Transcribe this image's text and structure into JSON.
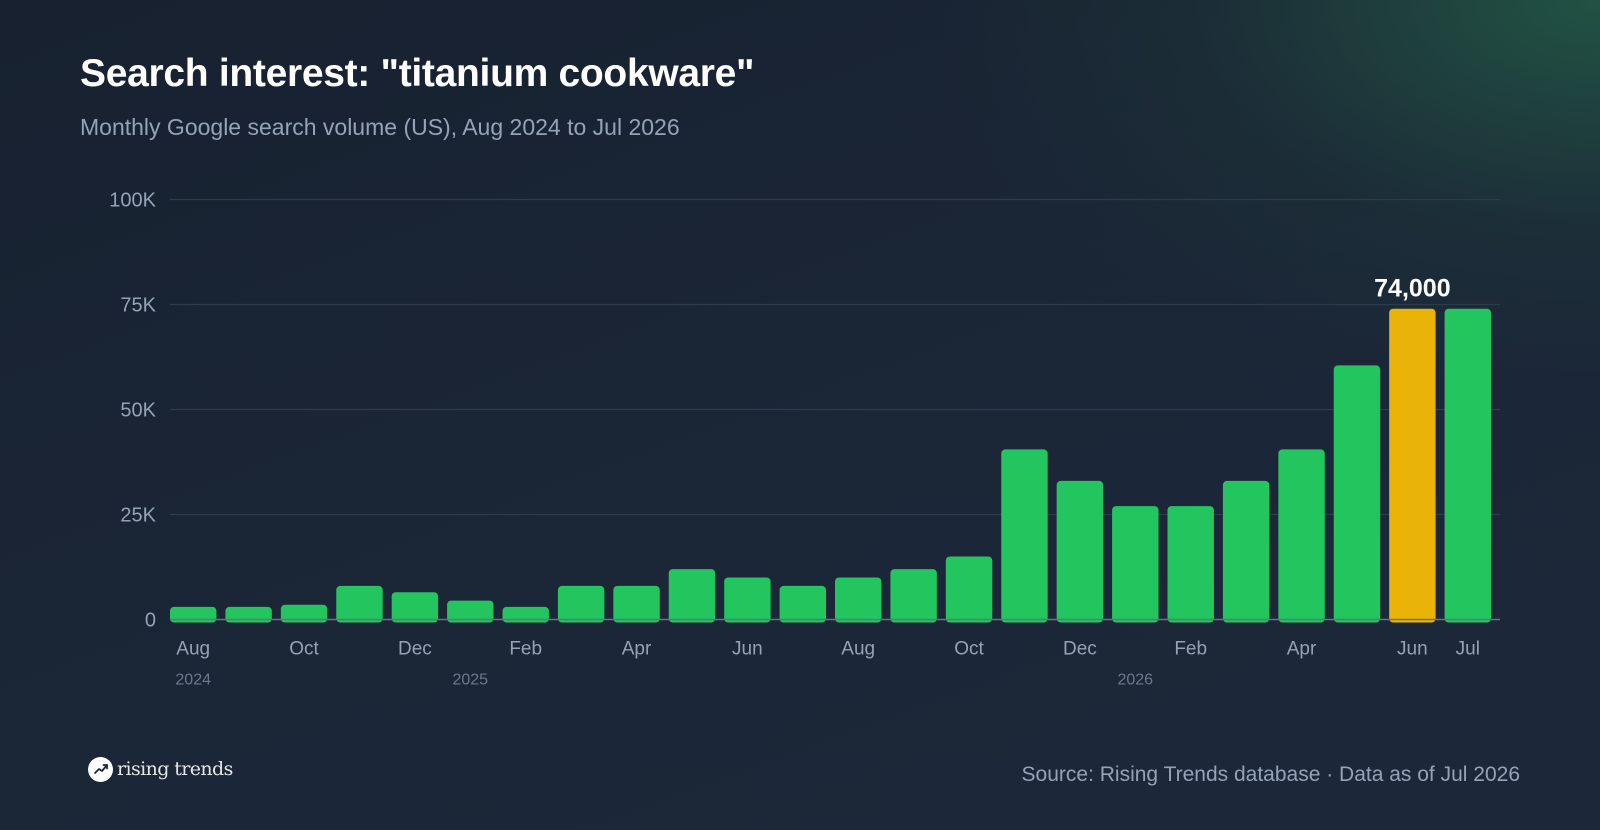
{
  "header": {
    "title": "Search interest: \"titanium cookware\"",
    "subtitle": "Monthly Google search volume (US), Aug 2024 to Jul 2026"
  },
  "footer": {
    "brand": "rising trends",
    "brand_icon": "trend-up-icon",
    "source": "Source: Rising Trends database · Data as of Jul 2026"
  },
  "colors": {
    "bar": "#22c55e",
    "highlight": "#eab308",
    "grid": "#2e3b4b",
    "baseline": "#6b7280",
    "tick_text": "#94a3b8",
    "year_text": "#6b7a8c",
    "annotation_text": "#ffffff"
  },
  "chart_data": {
    "type": "bar",
    "title": "Search interest: \"titanium cookware\"",
    "subtitle": "Monthly Google search volume (US), Aug 2024 to Jul 2026",
    "categories": [
      "Aug 2024",
      "Sep 2024",
      "Oct 2024",
      "Nov 2024",
      "Dec 2024",
      "Jan 2025",
      "Feb 2025",
      "Mar 2025",
      "Apr 2025",
      "May 2025",
      "Jun 2025",
      "Jul 2025",
      "Aug 2025",
      "Sep 2025",
      "Oct 2025",
      "Nov 2025",
      "Dec 2025",
      "Jan 2026",
      "Feb 2026",
      "Mar 2026",
      "Apr 2026",
      "May 2026",
      "Jun 2026",
      "Jul 2026"
    ],
    "values": [
      3000,
      3000,
      3500,
      8000,
      6500,
      4500,
      3000,
      8000,
      8000,
      12000,
      10000,
      8000,
      10000,
      12000,
      15000,
      40500,
      33000,
      27000,
      27000,
      33000,
      40500,
      60500,
      74000,
      74000
    ],
    "xlabel": "",
    "ylabel": "",
    "ylim": [
      0,
      100000
    ],
    "y_ticks": [
      0,
      25000,
      50000,
      75000,
      100000
    ],
    "y_tick_labels": [
      "0",
      "25K",
      "50K",
      "75K",
      "100K"
    ],
    "x_tick_labels": [
      {
        "index": 0,
        "label": "Aug"
      },
      {
        "index": 2,
        "label": "Oct"
      },
      {
        "index": 4,
        "label": "Dec"
      },
      {
        "index": 6,
        "label": "Feb"
      },
      {
        "index": 8,
        "label": "Apr"
      },
      {
        "index": 10,
        "label": "Jun"
      },
      {
        "index": 12,
        "label": "Aug"
      },
      {
        "index": 14,
        "label": "Oct"
      },
      {
        "index": 16,
        "label": "Dec"
      },
      {
        "index": 18,
        "label": "Feb"
      },
      {
        "index": 20,
        "label": "Apr"
      },
      {
        "index": 22,
        "label": "Jun"
      },
      {
        "index": 23,
        "label": "Jul"
      }
    ],
    "year_labels": [
      {
        "index": 0,
        "label": "2024"
      },
      {
        "index": 5,
        "label": "2025"
      },
      {
        "index": 17,
        "label": "2026"
      }
    ],
    "highlight_index": 22,
    "annotations": [
      {
        "index": 22,
        "text": "74,000"
      }
    ],
    "grid": true,
    "legend": "none"
  }
}
